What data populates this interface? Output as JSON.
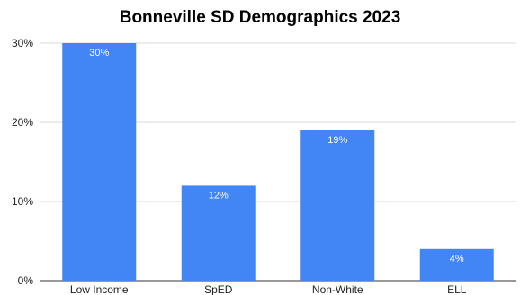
{
  "chart_data": {
    "type": "bar",
    "title": "Bonneville SD Demographics 2023",
    "xlabel": "",
    "ylabel": "",
    "categories": [
      "Low Income",
      "SpED",
      "Non-White",
      "ELL"
    ],
    "values": [
      30,
      12,
      19,
      4
    ],
    "data_labels": [
      "30%",
      "12%",
      "19%",
      "4%"
    ],
    "ylim": [
      0,
      30
    ],
    "yticks": [
      0,
      10,
      20,
      30
    ],
    "ytick_labels": [
      "0%",
      "10%",
      "20%",
      "30%"
    ],
    "grid": true,
    "legend": "none",
    "bar_color": "#4285f4",
    "grid_color": "#d9d9d9",
    "label_color": "#ffffff"
  }
}
